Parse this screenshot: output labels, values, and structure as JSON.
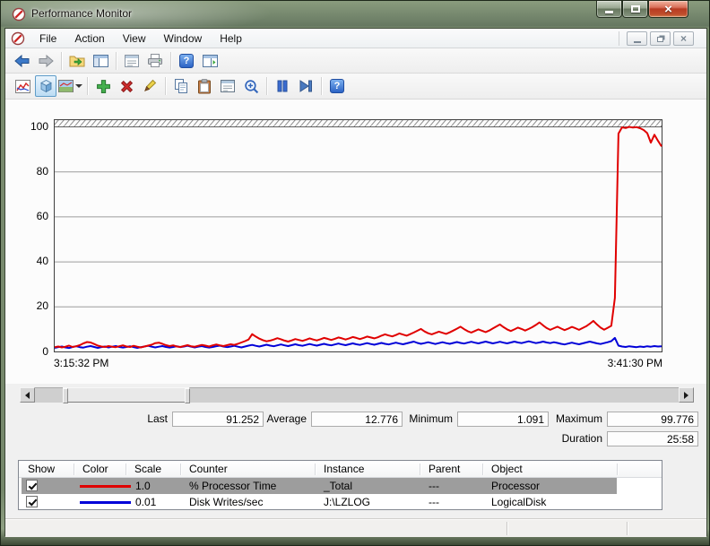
{
  "window": {
    "title": "Performance Monitor"
  },
  "menu": {
    "items": [
      {
        "label": "File"
      },
      {
        "label": "Action"
      },
      {
        "label": "View"
      },
      {
        "label": "Window"
      },
      {
        "label": "Help"
      }
    ]
  },
  "toolbars": {
    "standard_icons": [
      "back-arrow-icon",
      "forward-arrow-icon",
      "show-hide-console-tree-icon",
      "window-icon",
      "properties-dialog-icon",
      "printer-icon",
      "help-icon",
      "show-hide-action-pane-icon"
    ],
    "graph_icons": [
      "view-current-activity-icon",
      "view-log-data-icon",
      "change-graph-type-icon",
      "dropdown-arrow-icon",
      "add-counter-icon",
      "delete-counter-icon",
      "highlight-icon",
      "copy-properties-icon",
      "paste-counter-list-icon",
      "properties-icon",
      "zoom-icon",
      "freeze-display-icon",
      "update-data-icon",
      "help-icon"
    ]
  },
  "chart_data": {
    "type": "line",
    "title": "",
    "ylim": [
      0,
      100
    ],
    "yticks": [
      0,
      20,
      40,
      60,
      80,
      100
    ],
    "grid": true,
    "x_start_label": "3:15:32 PM",
    "x_end_label": "3:41:30 PM",
    "series": [
      {
        "name": "% Processor Time",
        "color": "#e00000",
        "values": [
          2.1,
          2.4,
          2.0,
          2.3,
          2.8,
          2.2,
          2.5,
          3.0,
          3.8,
          4.4,
          4.2,
          3.5,
          2.8,
          2.4,
          2.2,
          2.6,
          2.3,
          2.1,
          2.5,
          2.9,
          2.4,
          2.2,
          2.7,
          2.3,
          2.0,
          2.4,
          2.8,
          3.2,
          3.9,
          4.1,
          3.6,
          3.0,
          2.6,
          2.9,
          2.4,
          2.2,
          2.6,
          3.0,
          2.5,
          2.3,
          2.7,
          3.1,
          2.8,
          2.4,
          2.9,
          3.3,
          2.9,
          2.6,
          3.0,
          3.4,
          3.1,
          3.6,
          4.2,
          4.8,
          5.5,
          7.9,
          6.8,
          5.9,
          5.2,
          4.7,
          5.0,
          5.5,
          6.1,
          5.6,
          5.0,
          4.6,
          5.1,
          5.7,
          5.3,
          4.9,
          5.4,
          6.0,
          5.5,
          5.1,
          5.6,
          6.2,
          5.8,
          5.3,
          5.8,
          6.4,
          6.0,
          5.5,
          6.0,
          6.6,
          6.2,
          5.7,
          6.2,
          6.8,
          6.4,
          6.0,
          6.5,
          7.2,
          7.8,
          7.3,
          6.9,
          7.5,
          8.2,
          7.7,
          7.2,
          7.9,
          8.6,
          9.4,
          10.2,
          9.1,
          8.3,
          7.8,
          8.4,
          9.0,
          8.5,
          8.0,
          8.7,
          9.5,
          10.3,
          11.2,
          10.1,
          9.2,
          8.6,
          9.3,
          10.0,
          9.4,
          8.8,
          9.5,
          10.4,
          11.3,
          12.2,
          11.0,
          10.0,
          9.3,
          10.0,
          10.8,
          10.2,
          9.5,
          10.2,
          11.0,
          12.0,
          13.1,
          11.8,
          10.6,
          9.8,
          10.5,
          11.2,
          10.4,
          9.7,
          10.3,
          11.1,
          10.5,
          9.8,
          10.6,
          11.4,
          12.5,
          13.8,
          12.2,
          10.8,
          9.9,
          10.7,
          11.6,
          24.0,
          97.0,
          99.8,
          99.5,
          100.0,
          99.7,
          99.9,
          99.4,
          98.6,
          97.2,
          93.0,
          96.5,
          93.8,
          91.3
        ]
      },
      {
        "name": "Disk Writes/sec",
        "color": "#0000d8",
        "values": [
          1.8,
          2.1,
          2.4,
          2.0,
          1.7,
          2.2,
          2.5,
          2.1,
          1.9,
          2.3,
          2.6,
          2.2,
          1.8,
          2.1,
          2.4,
          2.0,
          2.3,
          2.6,
          2.2,
          1.9,
          2.2,
          2.5,
          2.1,
          1.8,
          2.1,
          2.4,
          2.7,
          2.3,
          2.0,
          2.3,
          2.6,
          2.2,
          1.9,
          2.2,
          2.5,
          2.1,
          2.4,
          2.7,
          2.3,
          2.0,
          2.3,
          2.6,
          2.2,
          1.9,
          2.2,
          2.5,
          2.8,
          2.4,
          2.1,
          2.4,
          2.7,
          2.3,
          2.0,
          2.4,
          2.8,
          3.1,
          2.7,
          2.4,
          2.8,
          3.2,
          2.8,
          2.5,
          2.9,
          3.3,
          2.9,
          2.6,
          3.0,
          3.4,
          3.0,
          2.7,
          3.1,
          3.5,
          3.1,
          2.8,
          3.2,
          3.6,
          3.2,
          2.9,
          3.3,
          3.7,
          3.3,
          3.0,
          3.4,
          3.8,
          3.4,
          3.1,
          3.5,
          3.9,
          3.5,
          3.2,
          3.6,
          4.0,
          3.6,
          3.3,
          3.7,
          4.1,
          3.7,
          3.4,
          3.8,
          4.2,
          4.6,
          4.0,
          3.6,
          3.9,
          4.3,
          3.9,
          3.5,
          3.9,
          4.3,
          3.9,
          3.6,
          4.0,
          4.4,
          4.0,
          3.7,
          4.1,
          4.5,
          4.1,
          3.8,
          4.2,
          4.6,
          4.2,
          3.8,
          4.1,
          4.5,
          4.1,
          3.8,
          4.2,
          4.6,
          4.2,
          3.9,
          4.3,
          4.7,
          4.3,
          3.9,
          4.2,
          4.6,
          4.2,
          3.9,
          4.3,
          4.0,
          3.6,
          3.3,
          3.7,
          4.1,
          3.7,
          3.4,
          3.8,
          4.2,
          4.6,
          4.2,
          3.8,
          3.5,
          3.9,
          4.3,
          4.8,
          6.2,
          2.8,
          2.4,
          2.2,
          2.5,
          2.3,
          2.1,
          2.4,
          2.2,
          2.5,
          2.3,
          2.6,
          2.4,
          2.5
        ]
      }
    ]
  },
  "stats": {
    "items": [
      {
        "label": "Last",
        "value": "91.252"
      },
      {
        "label": "Average",
        "value": "12.776"
      },
      {
        "label": "Minimum",
        "value": "1.091"
      },
      {
        "label": "Maximum",
        "value": "99.776"
      }
    ],
    "duration": {
      "label": "Duration",
      "value": "25:58"
    }
  },
  "table": {
    "columns": [
      "Show",
      "Color",
      "Scale",
      "Counter",
      "Instance",
      "Parent",
      "Object"
    ],
    "rows": [
      {
        "show": "checked",
        "color": "#e00000",
        "scale": "1.0",
        "counter": "% Processor Time",
        "instance": "_Total",
        "parent": "---",
        "object": "Processor",
        "selected": true
      },
      {
        "show": "checked",
        "color": "#0000d8",
        "scale": "0.01",
        "counter": "Disk Writes/sec",
        "instance": "J:\\LZLOG",
        "parent": "---",
        "object": "LogicalDisk",
        "selected": false
      }
    ]
  },
  "colors": {
    "series_red": "#e00000",
    "series_blue": "#0000d8",
    "selected_row": "#9d9d9d",
    "close_button": "#c0502d"
  }
}
